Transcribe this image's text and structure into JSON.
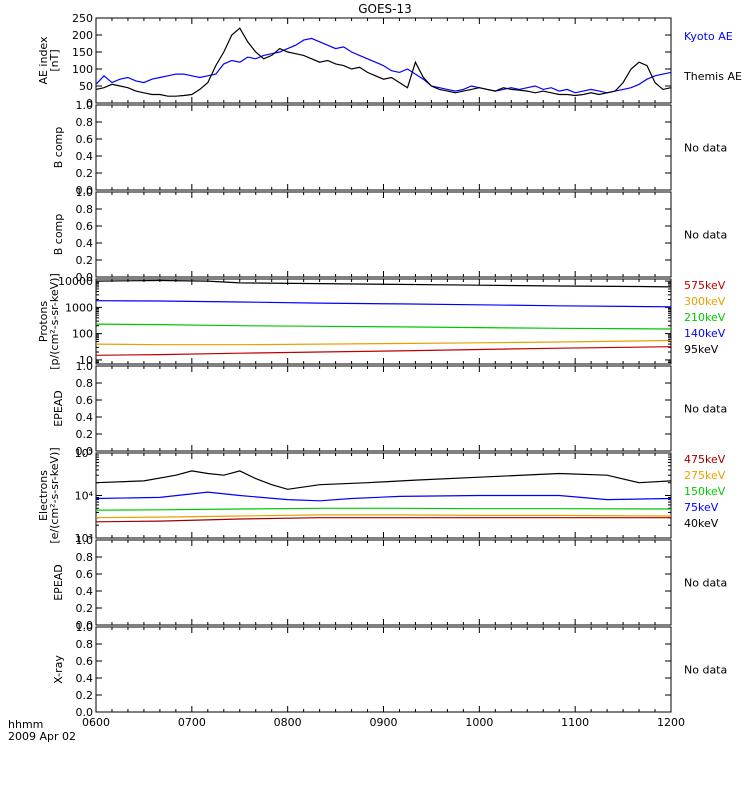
{
  "title": "GOES-13",
  "time_axis": {
    "ticks": [
      "0600",
      "0700",
      "0800",
      "0900",
      "1000",
      "1100",
      "1200"
    ],
    "corner_label_1": "hhmm",
    "corner_label_2": "2009 Apr 02"
  },
  "colors": {
    "black": "#000000",
    "blue": "#0000ff",
    "red": "#c00000",
    "orange": "#e8a000",
    "green": "#00c800",
    "dark_red": "#a00000"
  },
  "chart_data": [
    {
      "type": "line",
      "panel": "ae",
      "ylabel": "AE index\n[nT]",
      "ylim": [
        0,
        250
      ],
      "yticks": [
        "0",
        "50",
        "100",
        "150",
        "200",
        "250"
      ],
      "x_range_minutes": [
        360,
        720
      ],
      "legend_placement": "right",
      "series": [
        {
          "name": "Kyoto AE",
          "color": "#0000ff",
          "x": [
            360,
            365,
            370,
            375,
            380,
            385,
            390,
            395,
            400,
            405,
            410,
            415,
            420,
            425,
            430,
            435,
            440,
            445,
            450,
            455,
            460,
            465,
            470,
            475,
            480,
            485,
            490,
            495,
            500,
            505,
            510,
            515,
            520,
            525,
            530,
            535,
            540,
            545,
            550,
            555,
            560,
            565,
            570,
            575,
            580,
            585,
            590,
            595,
            600,
            605,
            610,
            615,
            620,
            625,
            630,
            635,
            640,
            645,
            650,
            655,
            660,
            665,
            670,
            675,
            680,
            685,
            690,
            695,
            700,
            705,
            710,
            715,
            720
          ],
          "y": [
            55,
            80,
            60,
            70,
            75,
            65,
            60,
            70,
            75,
            80,
            85,
            85,
            80,
            75,
            80,
            85,
            115,
            125,
            120,
            135,
            130,
            140,
            145,
            150,
            160,
            170,
            185,
            190,
            180,
            170,
            160,
            165,
            150,
            140,
            130,
            120,
            110,
            95,
            90,
            100,
            85,
            70,
            50,
            45,
            40,
            35,
            40,
            50,
            45,
            40,
            35,
            40,
            45,
            40,
            45,
            50,
            40,
            45,
            35,
            40,
            30,
            35,
            40,
            35,
            30,
            35,
            40,
            45,
            55,
            70,
            80,
            85,
            90
          ]
        },
        {
          "name": "Themis AE",
          "color": "#000000",
          "x": [
            360,
            365,
            370,
            375,
            380,
            385,
            390,
            395,
            400,
            405,
            410,
            415,
            420,
            425,
            430,
            435,
            440,
            445,
            450,
            455,
            460,
            465,
            470,
            475,
            480,
            485,
            490,
            495,
            500,
            505,
            510,
            515,
            520,
            525,
            530,
            535,
            540,
            545,
            550,
            555,
            560,
            565,
            570,
            575,
            580,
            585,
            590,
            595,
            600,
            605,
            610,
            615,
            620,
            625,
            630,
            635,
            640,
            645,
            650,
            655,
            660,
            665,
            670,
            675,
            680,
            685,
            690,
            695,
            700,
            705,
            710,
            715,
            720
          ],
          "y": [
            40,
            45,
            55,
            50,
            45,
            35,
            30,
            25,
            25,
            20,
            20,
            22,
            25,
            40,
            60,
            110,
            150,
            200,
            220,
            180,
            150,
            130,
            140,
            160,
            150,
            145,
            140,
            130,
            120,
            125,
            115,
            110,
            100,
            105,
            90,
            80,
            70,
            75,
            60,
            45,
            120,
            75,
            50,
            40,
            35,
            30,
            35,
            40,
            45,
            40,
            35,
            45,
            40,
            38,
            35,
            30,
            35,
            30,
            25,
            25,
            22,
            25,
            30,
            25,
            30,
            35,
            60,
            100,
            120,
            110,
            60,
            40,
            45
          ]
        }
      ]
    },
    {
      "type": "line",
      "panel": "b1",
      "ylabel": "B comp",
      "ylim": [
        0,
        1
      ],
      "yticks": [
        "0.0",
        "0.2",
        "0.4",
        "0.6",
        "0.8",
        "1.0"
      ],
      "status": "No data"
    },
    {
      "type": "line",
      "panel": "b2",
      "ylabel": "B comp",
      "ylim": [
        0,
        1
      ],
      "yticks": [
        "0.0",
        "0.2",
        "0.4",
        "0.6",
        "0.8",
        "1.0"
      ],
      "status": "No data"
    },
    {
      "type": "line",
      "panel": "protons",
      "ylabel": "Protons\n[p/(cm²-s-sr-keV)]",
      "log_scale": true,
      "ylim": [
        7,
        12000
      ],
      "yticks": [
        "10",
        "100",
        "1000",
        "10000"
      ],
      "legend_placement": "right",
      "series": [
        {
          "name": "575keV",
          "color": "#c00000",
          "x": [
            360,
            400,
            450,
            500,
            550,
            600,
            650,
            720
          ],
          "y": [
            15,
            16,
            18,
            20,
            22,
            25,
            28,
            32
          ]
        },
        {
          "name": "300keV",
          "color": "#e8a000",
          "x": [
            360,
            400,
            450,
            500,
            550,
            600,
            650,
            720
          ],
          "y": [
            40,
            38,
            38,
            40,
            42,
            45,
            48,
            55
          ]
        },
        {
          "name": "210keV",
          "color": "#00c800",
          "x": [
            360,
            400,
            450,
            500,
            550,
            600,
            650,
            720
          ],
          "y": [
            230,
            220,
            200,
            190,
            180,
            170,
            160,
            150
          ]
        },
        {
          "name": "140keV",
          "color": "#0000ff",
          "x": [
            360,
            400,
            450,
            500,
            550,
            600,
            650,
            720
          ],
          "y": [
            1800,
            1750,
            1600,
            1450,
            1350,
            1250,
            1150,
            1050
          ]
        },
        {
          "name": "95keV",
          "color": "#000000",
          "x": [
            360,
            400,
            430,
            450,
            500,
            550,
            600,
            650,
            700,
            720
          ],
          "y": [
            10000,
            10500,
            10000,
            8500,
            8000,
            7500,
            7000,
            6500,
            6200,
            6000
          ]
        }
      ]
    },
    {
      "type": "line",
      "panel": "epead1",
      "ylabel": "EPEAD",
      "ylim": [
        0,
        1
      ],
      "yticks": [
        "0.0",
        "0.2",
        "0.4",
        "0.6",
        "0.8",
        "1.0"
      ],
      "status": "No data"
    },
    {
      "type": "line",
      "panel": "electrons",
      "ylabel": "Electrons\n[e/(cm²-s-sr-keV)]",
      "log_scale": true,
      "ylim": [
        1000,
        100000
      ],
      "yticks": [
        "10³",
        "10⁴",
        "10⁵"
      ],
      "legend_placement": "right",
      "series": [
        {
          "name": "475keV",
          "color": "#a00000",
          "x": [
            360,
            400,
            450,
            500,
            550,
            600,
            650,
            720
          ],
          "y": [
            2400,
            2500,
            2800,
            3000,
            3000,
            3000,
            3000,
            3000
          ]
        },
        {
          "name": "275keV",
          "color": "#e8a000",
          "x": [
            360,
            400,
            450,
            500,
            550,
            600,
            650,
            720
          ],
          "y": [
            3000,
            3100,
            3300,
            3500,
            3500,
            3400,
            3400,
            3300
          ]
        },
        {
          "name": "150keV",
          "color": "#00c800",
          "x": [
            360,
            400,
            450,
            500,
            550,
            600,
            650,
            720
          ],
          "y": [
            4500,
            4600,
            4800,
            5000,
            5000,
            4900,
            4900,
            4800
          ]
        },
        {
          "name": "75keV",
          "color": "#0000ff",
          "x": [
            360,
            400,
            430,
            450,
            480,
            500,
            520,
            550,
            600,
            650,
            680,
            720
          ],
          "y": [
            8500,
            9000,
            12000,
            10000,
            8000,
            7500,
            8500,
            9500,
            10000,
            10000,
            8000,
            8500
          ]
        },
        {
          "name": "40keV",
          "color": "#000000",
          "x": [
            360,
            390,
            410,
            420,
            430,
            440,
            450,
            460,
            470,
            480,
            500,
            530,
            560,
            600,
            650,
            680,
            700,
            720
          ],
          "y": [
            20000,
            22000,
            30000,
            38000,
            33000,
            30000,
            38000,
            25000,
            18000,
            14000,
            18000,
            20000,
            23000,
            27000,
            33000,
            30000,
            20000,
            22000
          ]
        }
      ]
    },
    {
      "type": "line",
      "panel": "epead2",
      "ylabel": "EPEAD",
      "ylim": [
        0,
        1
      ],
      "yticks": [
        "0.0",
        "0.2",
        "0.4",
        "0.6",
        "0.8",
        "1.0"
      ],
      "status": "No data"
    },
    {
      "type": "line",
      "panel": "xray",
      "ylabel": "X-ray",
      "ylim": [
        0,
        1
      ],
      "yticks": [
        "0.0",
        "0.2",
        "0.4",
        "0.6",
        "0.8",
        "1.0"
      ],
      "status": "No data"
    }
  ]
}
